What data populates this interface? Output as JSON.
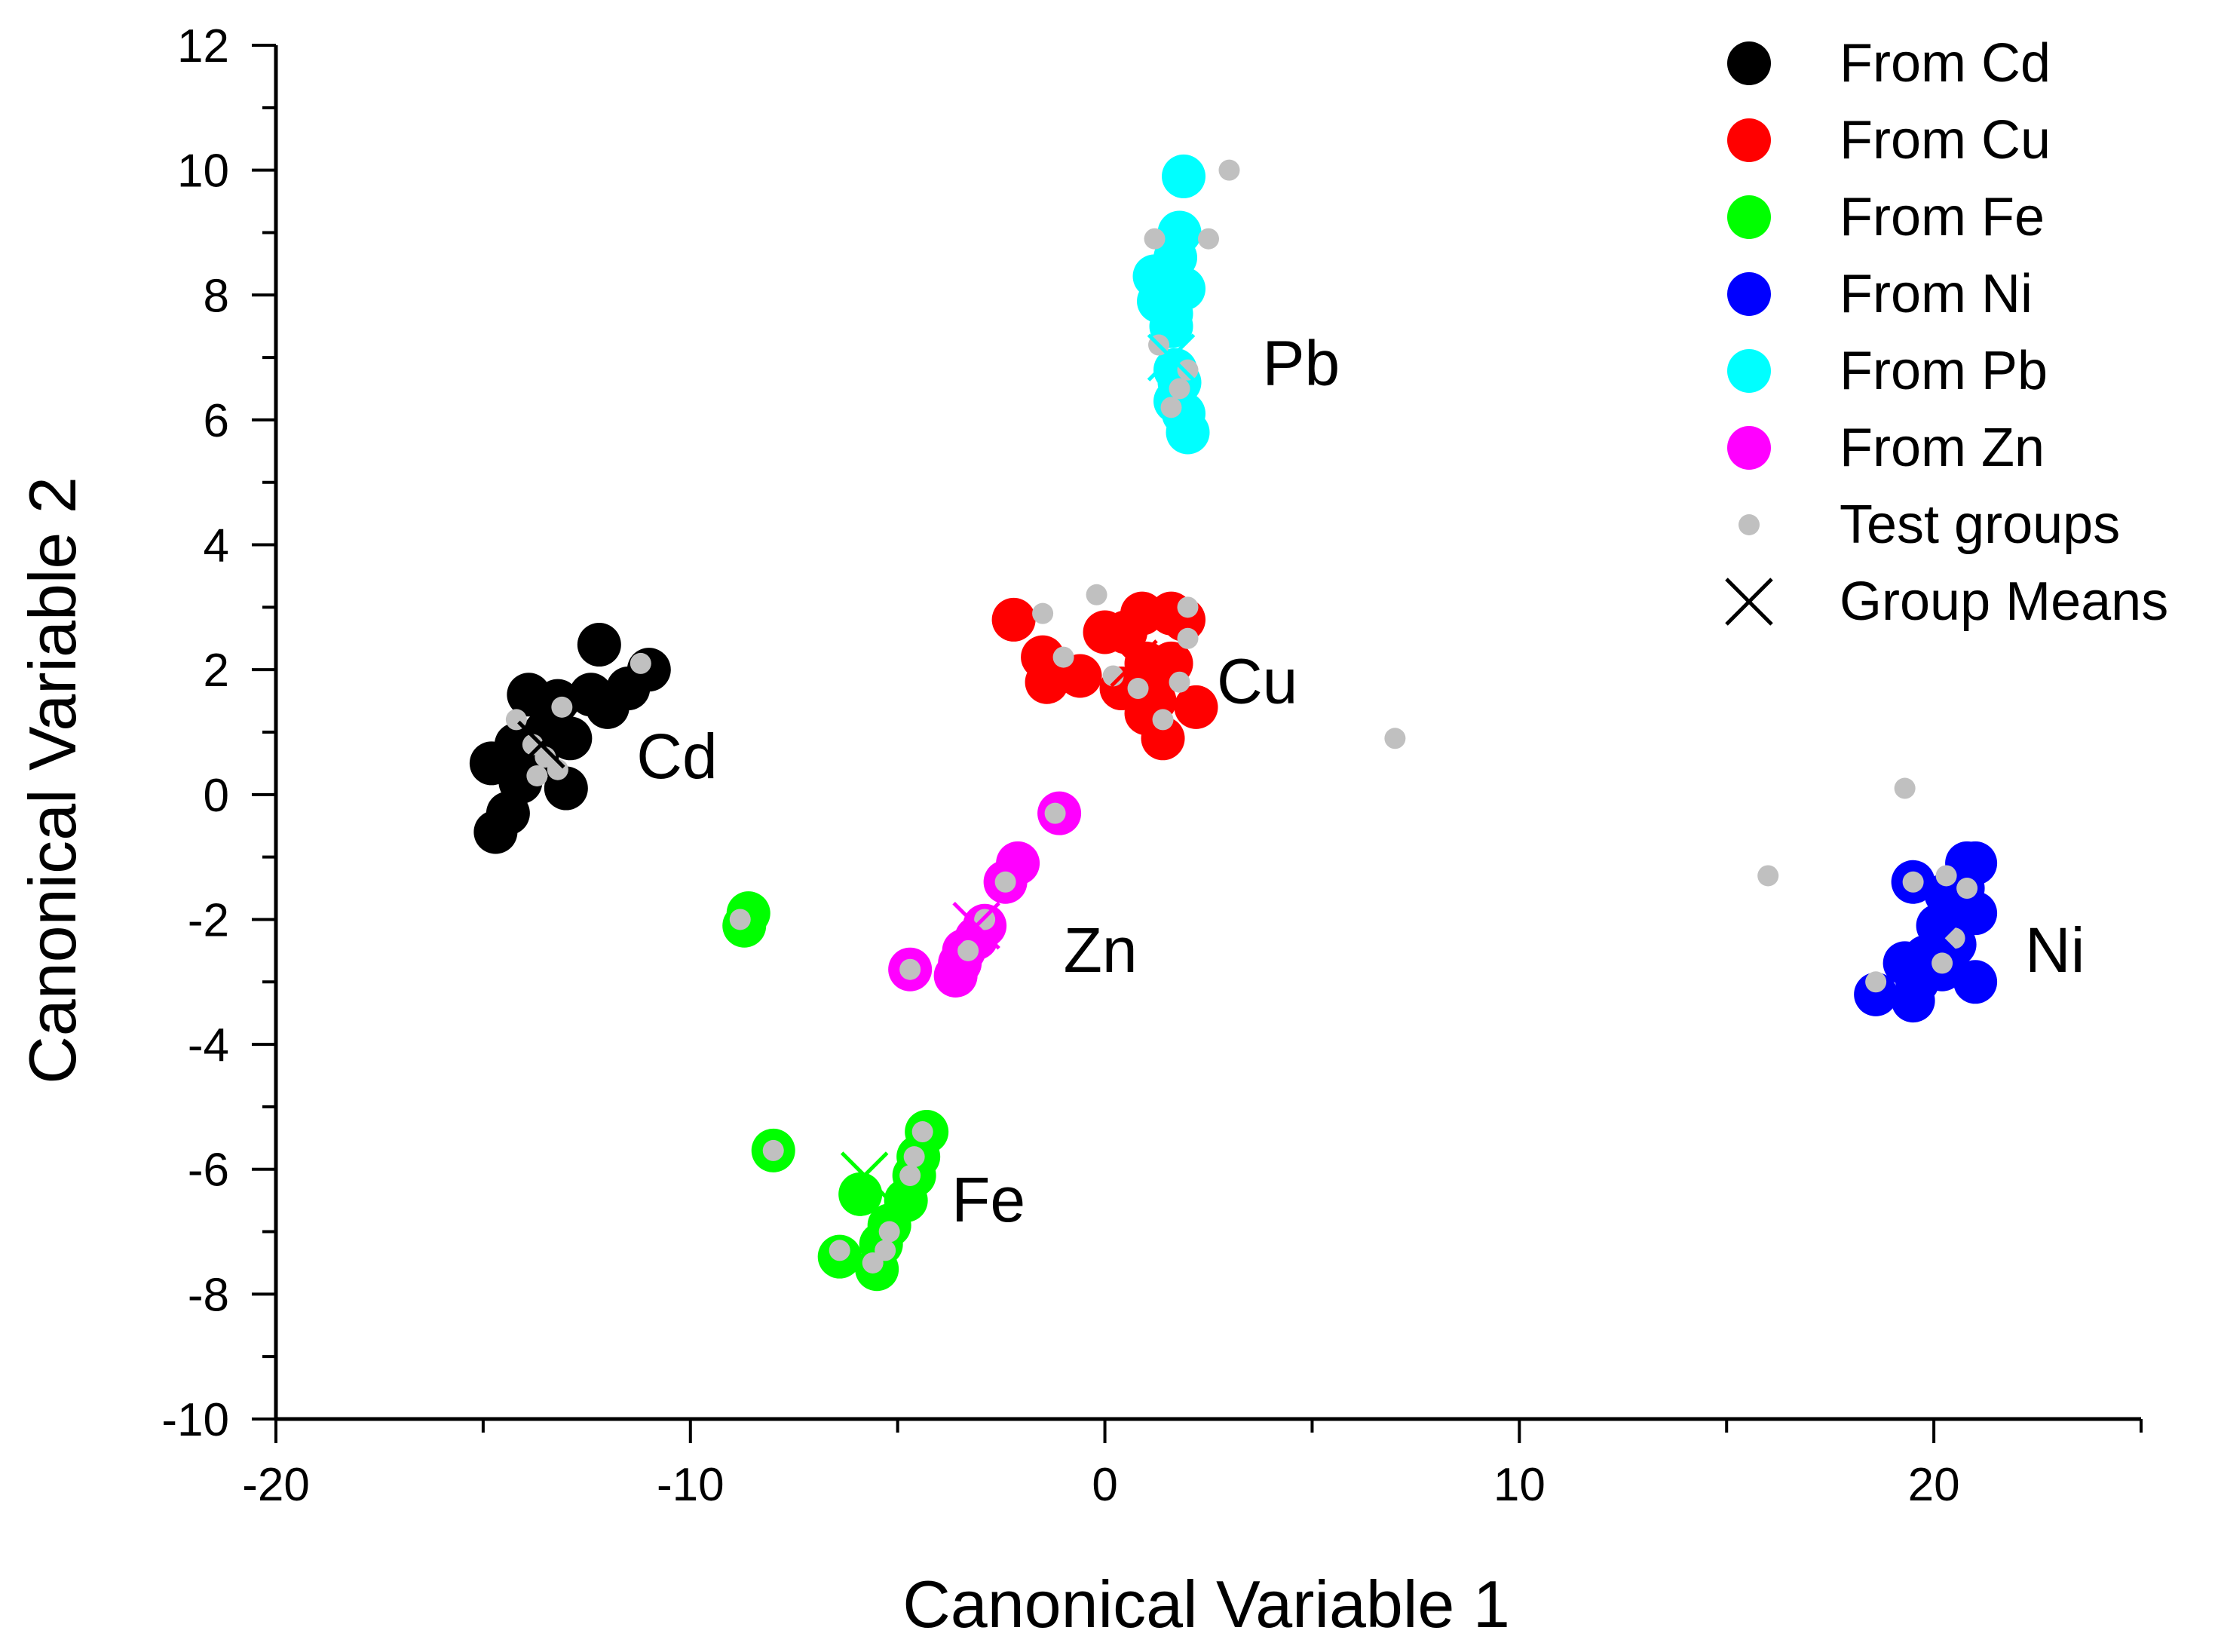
{
  "chart_data": {
    "type": "scatter",
    "title": "",
    "xlabel": "Canonical Variable 1",
    "ylabel": "Canonical Variable 2",
    "xlim": [
      -20,
      25
    ],
    "ylim": [
      -10,
      12
    ],
    "x_ticks": [
      -20,
      -10,
      0,
      10,
      20
    ],
    "y_ticks": [
      -10,
      -8,
      -6,
      -4,
      -2,
      0,
      2,
      4,
      6,
      8,
      10,
      12
    ],
    "x_tick_labels": [
      "-20",
      "-10",
      "0",
      "10",
      "20"
    ],
    "y_tick_labels": [
      "-10",
      "-8",
      "-6",
      "-4",
      "-2",
      "0",
      "2",
      "4",
      "6",
      "8",
      "10",
      "12"
    ],
    "grid": false,
    "legend_position": "top-right",
    "legend": [
      {
        "label": "From Cd",
        "marker": "circle",
        "color": "#000000"
      },
      {
        "label": "From Cu",
        "marker": "circle",
        "color": "#ff0000"
      },
      {
        "label": "From Fe",
        "marker": "circle",
        "color": "#00ff00"
      },
      {
        "label": "From Ni",
        "marker": "circle",
        "color": "#0000ff"
      },
      {
        "label": "From Pb",
        "marker": "circle",
        "color": "#00ffff"
      },
      {
        "label": "From Zn",
        "marker": "circle",
        "color": "#ff00ff"
      },
      {
        "label": "Test groups",
        "marker": "small-circle",
        "color": "#c0c0c0"
      },
      {
        "label": "Group Means",
        "marker": "cross",
        "color": "#000000"
      }
    ],
    "series": [
      {
        "name": "From Cd",
        "color": "#000000",
        "points": [
          [
            -12.2,
            2.4
          ],
          [
            -11.0,
            2.0
          ],
          [
            -11.5,
            1.7
          ],
          [
            -12.0,
            1.4
          ],
          [
            -12.4,
            1.6
          ],
          [
            -13.2,
            1.5
          ],
          [
            -13.9,
            1.6
          ],
          [
            -12.9,
            0.9
          ],
          [
            -13.5,
            1.0
          ],
          [
            -14.2,
            0.8
          ],
          [
            -13.7,
            0.6
          ],
          [
            -14.8,
            0.5
          ],
          [
            -14.1,
            0.2
          ],
          [
            -13.0,
            0.1
          ],
          [
            -14.4,
            -0.3
          ],
          [
            -14.7,
            -0.6
          ]
        ]
      },
      {
        "name": "From Cu",
        "color": "#ff0000",
        "points": [
          [
            -2.2,
            2.8
          ],
          [
            -1.5,
            2.2
          ],
          [
            -1.4,
            1.8
          ],
          [
            -0.6,
            1.9
          ],
          [
            0.0,
            2.6
          ],
          [
            0.5,
            2.6
          ],
          [
            0.9,
            2.9
          ],
          [
            1.6,
            2.9
          ],
          [
            1.9,
            2.8
          ],
          [
            1.0,
            2.1
          ],
          [
            1.6,
            2.1
          ],
          [
            1.2,
            1.5
          ],
          [
            0.4,
            1.7
          ],
          [
            1.0,
            1.3
          ],
          [
            2.2,
            1.4
          ],
          [
            1.4,
            0.9
          ]
        ]
      },
      {
        "name": "From Fe",
        "color": "#00ff00",
        "points": [
          [
            -8.6,
            -1.9
          ],
          [
            -8.7,
            -2.1
          ],
          [
            -8.0,
            -5.7
          ],
          [
            -4.3,
            -5.4
          ],
          [
            -4.5,
            -5.8
          ],
          [
            -4.6,
            -6.1
          ],
          [
            -5.9,
            -6.4
          ],
          [
            -4.8,
            -6.5
          ],
          [
            -5.2,
            -6.9
          ],
          [
            -5.4,
            -7.2
          ],
          [
            -6.4,
            -7.4
          ],
          [
            -5.5,
            -7.6
          ]
        ]
      },
      {
        "name": "From Ni",
        "color": "#0000ff",
        "points": [
          [
            19.5,
            -1.4
          ],
          [
            20.8,
            -1.1
          ],
          [
            21.0,
            -1.1
          ],
          [
            20.3,
            -1.6
          ],
          [
            20.7,
            -1.5
          ],
          [
            21.0,
            -1.9
          ],
          [
            20.1,
            -2.1
          ],
          [
            20.5,
            -2.4
          ],
          [
            19.8,
            -2.6
          ],
          [
            19.3,
            -2.7
          ],
          [
            20.2,
            -2.8
          ],
          [
            19.6,
            -3.0
          ],
          [
            21.0,
            -3.0
          ],
          [
            18.6,
            -3.2
          ],
          [
            19.5,
            -3.3
          ]
        ]
      },
      {
        "name": "From Pb",
        "color": "#00ffff",
        "points": [
          [
            1.9,
            9.9
          ],
          [
            1.8,
            9.0
          ],
          [
            1.7,
            8.6
          ],
          [
            1.2,
            8.3
          ],
          [
            1.9,
            8.1
          ],
          [
            1.3,
            7.9
          ],
          [
            1.6,
            7.7
          ],
          [
            1.6,
            7.5
          ],
          [
            1.7,
            6.8
          ],
          [
            1.8,
            6.6
          ],
          [
            1.7,
            6.3
          ],
          [
            1.9,
            6.1
          ],
          [
            2.0,
            5.8
          ]
        ]
      },
      {
        "name": "From Zn",
        "color": "#ff00ff",
        "points": [
          [
            -1.1,
            -0.3
          ],
          [
            -2.1,
            -1.1
          ],
          [
            -2.4,
            -1.4
          ],
          [
            -2.9,
            -2.1
          ],
          [
            -3.1,
            -2.3
          ],
          [
            -3.4,
            -2.5
          ],
          [
            -3.5,
            -2.7
          ],
          [
            -4.7,
            -2.8
          ],
          [
            -3.6,
            -2.9
          ]
        ]
      },
      {
        "name": "Test groups",
        "color": "#c0c0c0",
        "points": [
          [
            -11.2,
            2.1
          ],
          [
            -13.1,
            1.4
          ],
          [
            -14.2,
            1.2
          ],
          [
            -13.8,
            0.8
          ],
          [
            -13.5,
            0.6
          ],
          [
            -13.2,
            0.4
          ],
          [
            -13.7,
            0.3
          ],
          [
            -1.5,
            2.9
          ],
          [
            -1.0,
            2.2
          ],
          [
            -0.2,
            3.2
          ],
          [
            0.2,
            1.9
          ],
          [
            0.8,
            1.7
          ],
          [
            1.8,
            1.8
          ],
          [
            2.0,
            3.0
          ],
          [
            2.0,
            2.5
          ],
          [
            1.4,
            1.2
          ],
          [
            7.0,
            0.9
          ],
          [
            3.0,
            10.0
          ],
          [
            2.5,
            8.9
          ],
          [
            1.2,
            8.9
          ],
          [
            1.3,
            7.2
          ],
          [
            2.0,
            6.8
          ],
          [
            1.8,
            6.5
          ],
          [
            1.6,
            6.2
          ],
          [
            -1.2,
            -0.3
          ],
          [
            -2.4,
            -1.4
          ],
          [
            -2.9,
            -2.0
          ],
          [
            -3.3,
            -2.5
          ],
          [
            -4.7,
            -2.8
          ],
          [
            -8.8,
            -2.0
          ],
          [
            -8.0,
            -5.7
          ],
          [
            -4.4,
            -5.4
          ],
          [
            -4.6,
            -5.8
          ],
          [
            -4.7,
            -6.1
          ],
          [
            -5.2,
            -7.0
          ],
          [
            -5.3,
            -7.3
          ],
          [
            -6.4,
            -7.3
          ],
          [
            -5.6,
            -7.5
          ],
          [
            19.3,
            0.1
          ],
          [
            16.0,
            -1.3
          ],
          [
            19.5,
            -1.4
          ],
          [
            20.3,
            -1.3
          ],
          [
            20.8,
            -1.5
          ],
          [
            20.5,
            -2.3
          ],
          [
            20.2,
            -2.7
          ],
          [
            18.6,
            -3.0
          ]
        ]
      },
      {
        "name": "Group Means",
        "marker": "cross",
        "points": [
          {
            "x": -13.6,
            "y": 0.8,
            "color": "#000000"
          },
          {
            "x": 0.7,
            "y": 2.1,
            "color": "#ff0000"
          },
          {
            "x": -5.8,
            "y": -6.1,
            "color": "#00ff00"
          },
          {
            "x": 20.2,
            "y": -2.3,
            "color": "#0000ff"
          },
          {
            "x": 1.6,
            "y": 7.0,
            "color": "#00ffff"
          },
          {
            "x": -3.1,
            "y": -2.1,
            "color": "#ff00ff"
          }
        ]
      }
    ],
    "annotations": [
      {
        "text": "Cd",
        "x": -11.3,
        "y": 0.6
      },
      {
        "text": "Cu",
        "x": 2.7,
        "y": 1.8
      },
      {
        "text": "Fe",
        "x": -3.7,
        "y": -6.5
      },
      {
        "text": "Ni",
        "x": 22.2,
        "y": -2.5
      },
      {
        "text": "Pb",
        "x": 3.8,
        "y": 6.9
      },
      {
        "text": "Zn",
        "x": -1.0,
        "y": -2.5
      }
    ]
  }
}
